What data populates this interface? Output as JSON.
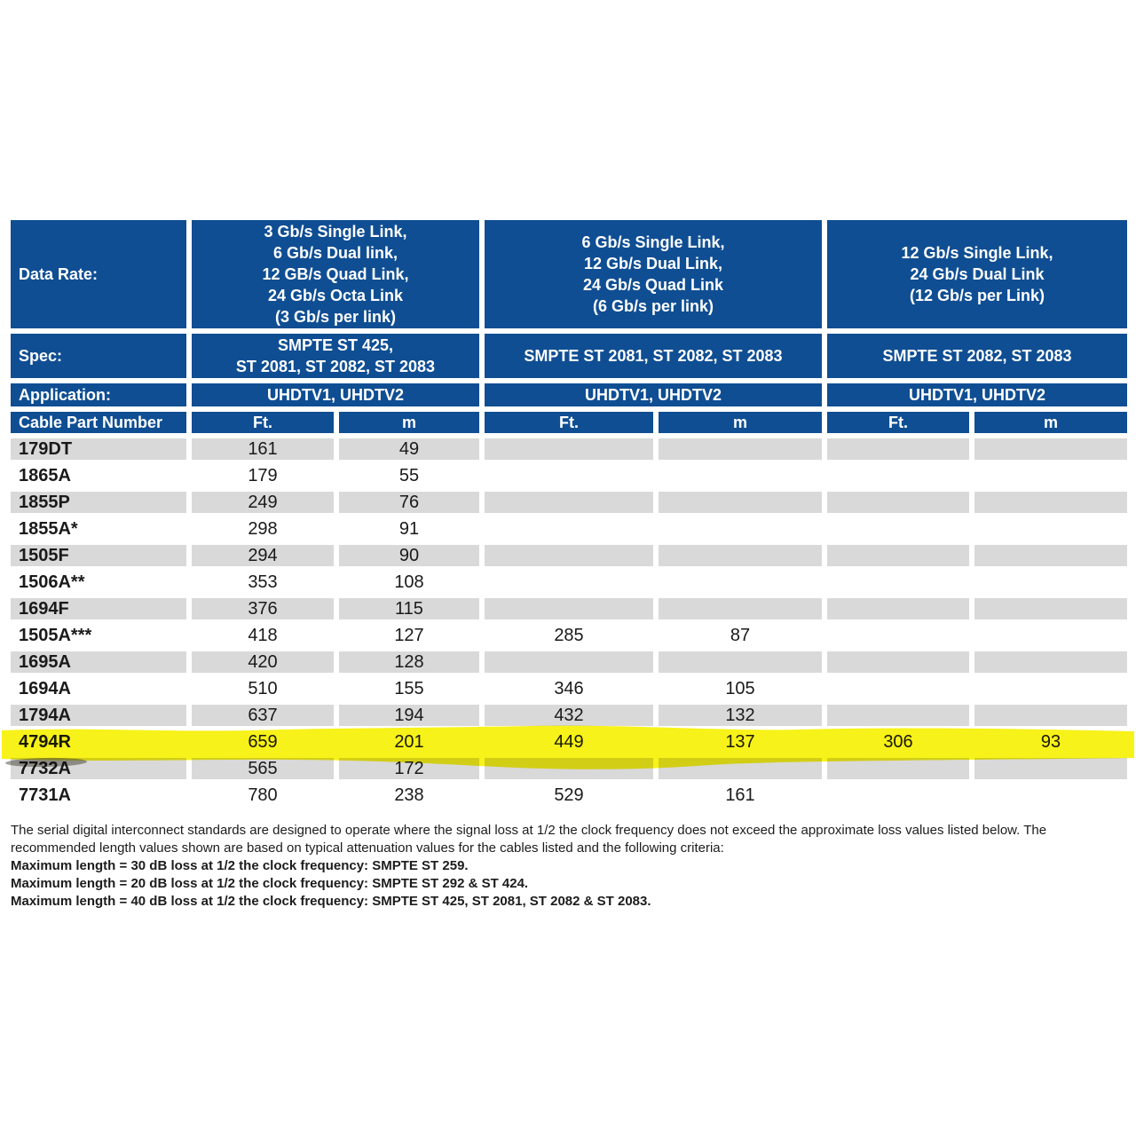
{
  "colors": {
    "header_blue": "#0f4e93",
    "row_gray": "#d9d9d9",
    "highlight_yellow": "#f7f219",
    "smudge_gray": "#4a473c"
  },
  "table": {
    "data_rate_label": "Data Rate:",
    "spec_label": "Spec:",
    "application_label": "Application:",
    "part_number_label": "Cable Part Number",
    "groups": [
      {
        "data_rate": "3 Gb/s Single Link,\n6 Gb/s Dual link,\n12 GB/s Quad Link,\n24 Gb/s Octa Link\n(3 Gb/s per link)",
        "spec": "SMPTE ST 425,\nST 2081, ST 2082, ST 2083",
        "application": "UHDTV1, UHDTV2",
        "ft_header": "Ft.",
        "m_header": "m"
      },
      {
        "data_rate": "6 Gb/s Single Link,\n12 Gb/s Dual Link,\n24 Gb/s Quad Link\n(6 Gb/s per link)",
        "spec": "SMPTE ST 2081, ST 2082, ST 2083",
        "application": "UHDTV1, UHDTV2",
        "ft_header": "Ft.",
        "m_header": "m"
      },
      {
        "data_rate": "12 Gb/s Single Link,\n24 Gb/s Dual Link\n(12 Gb/s per Link)",
        "spec": "SMPTE ST 2082, ST 2083",
        "application": "UHDTV1, UHDTV2",
        "ft_header": "Ft.",
        "m_header": "m"
      }
    ],
    "rows": [
      {
        "part": "179DT",
        "values": [
          "161",
          "49",
          "",
          "",
          "",
          ""
        ],
        "shaded": true,
        "highlighted": false
      },
      {
        "part": "1865A",
        "values": [
          "179",
          "55",
          "",
          "",
          "",
          ""
        ],
        "shaded": false,
        "highlighted": false
      },
      {
        "part": "1855P",
        "values": [
          "249",
          "76",
          "",
          "",
          "",
          ""
        ],
        "shaded": true,
        "highlighted": false
      },
      {
        "part": "1855A*",
        "values": [
          "298",
          "91",
          "",
          "",
          "",
          ""
        ],
        "shaded": false,
        "highlighted": false
      },
      {
        "part": "1505F",
        "values": [
          "294",
          "90",
          "",
          "",
          "",
          ""
        ],
        "shaded": true,
        "highlighted": false
      },
      {
        "part": "1506A**",
        "values": [
          "353",
          "108",
          "",
          "",
          "",
          ""
        ],
        "shaded": false,
        "highlighted": false
      },
      {
        "part": "1694F",
        "values": [
          "376",
          "115",
          "",
          "",
          "",
          ""
        ],
        "shaded": true,
        "highlighted": false
      },
      {
        "part": "1505A***",
        "values": [
          "418",
          "127",
          "285",
          "87",
          "",
          ""
        ],
        "shaded": false,
        "highlighted": false
      },
      {
        "part": "1695A",
        "values": [
          "420",
          "128",
          "",
          "",
          "",
          ""
        ],
        "shaded": true,
        "highlighted": false
      },
      {
        "part": "1694A",
        "values": [
          "510",
          "155",
          "346",
          "105",
          "",
          ""
        ],
        "shaded": false,
        "highlighted": false
      },
      {
        "part": "1794A",
        "values": [
          "637",
          "194",
          "432",
          "132",
          "",
          ""
        ],
        "shaded": true,
        "highlighted": false
      },
      {
        "part": "4794R",
        "values": [
          "659",
          "201",
          "449",
          "137",
          "306",
          "93"
        ],
        "shaded": false,
        "highlighted": true
      },
      {
        "part": "7732A",
        "values": [
          "565",
          "172",
          "",
          "",
          "",
          ""
        ],
        "shaded": true,
        "highlighted": false
      },
      {
        "part": "7731A",
        "values": [
          "780",
          "238",
          "529",
          "161",
          "",
          ""
        ],
        "shaded": false,
        "highlighted": false
      }
    ]
  },
  "notes": {
    "paragraph": "The serial digital interconnect standards are designed to operate where the signal loss at 1/2 the clock frequency does not exceed the approximate loss values listed below. The recommended length values shown are based on typical attenuation values for the cables listed and the following criteria:",
    "criteria": [
      "Maximum length = 30 dB loss at 1/2 the clock frequency: SMPTE ST 259.",
      "Maximum length = 20 dB loss at 1/2 the clock frequency: SMPTE ST 292 & ST 424.",
      "Maximum length = 40 dB loss at 1/2 the clock frequency: SMPTE ST 425, ST 2081, ST 2082 & ST 2083."
    ]
  }
}
